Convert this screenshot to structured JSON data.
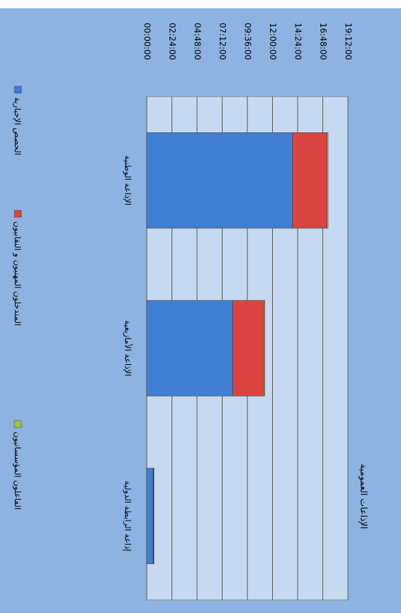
{
  "chart_data": {
    "type": "stacked-bar",
    "title": "الإذاعات العمومية",
    "categories": [
      "الإذاعة الوطنية",
      "الإذاعة الأمازيغية",
      "إذاعة الرابطة الدولية"
    ],
    "series": [
      {
        "name": "الحصص الإخبارية",
        "color": "#3f7fd4",
        "values": [
          13.9,
          8.2,
          0.6
        ]
      },
      {
        "name": "المتدخلون المهنيون و النقابيون",
        "color": "#d9453e",
        "values": [
          3.3,
          3.0,
          0.05
        ]
      },
      {
        "name": "الفاعلون المؤسساتيون",
        "color": "#a6c43a",
        "values": [
          0.1,
          0.05,
          0.05
        ]
      }
    ],
    "ylim": [
      0,
      19.2
    ],
    "yticks": [
      {
        "value": 0,
        "label": "00:00:00"
      },
      {
        "value": 2.4,
        "label": "02:24:00"
      },
      {
        "value": 4.8,
        "label": "04:48:00"
      },
      {
        "value": 7.2,
        "label": "07:12:00"
      },
      {
        "value": 9.6,
        "label": "09:36:00"
      },
      {
        "value": 12,
        "label": "12:00:00"
      },
      {
        "value": 14.4,
        "label": "14:24:00"
      },
      {
        "value": 16.8,
        "label": "16:48:00"
      },
      {
        "value": 19.2,
        "label": "19:12:00"
      }
    ],
    "grid": true
  }
}
